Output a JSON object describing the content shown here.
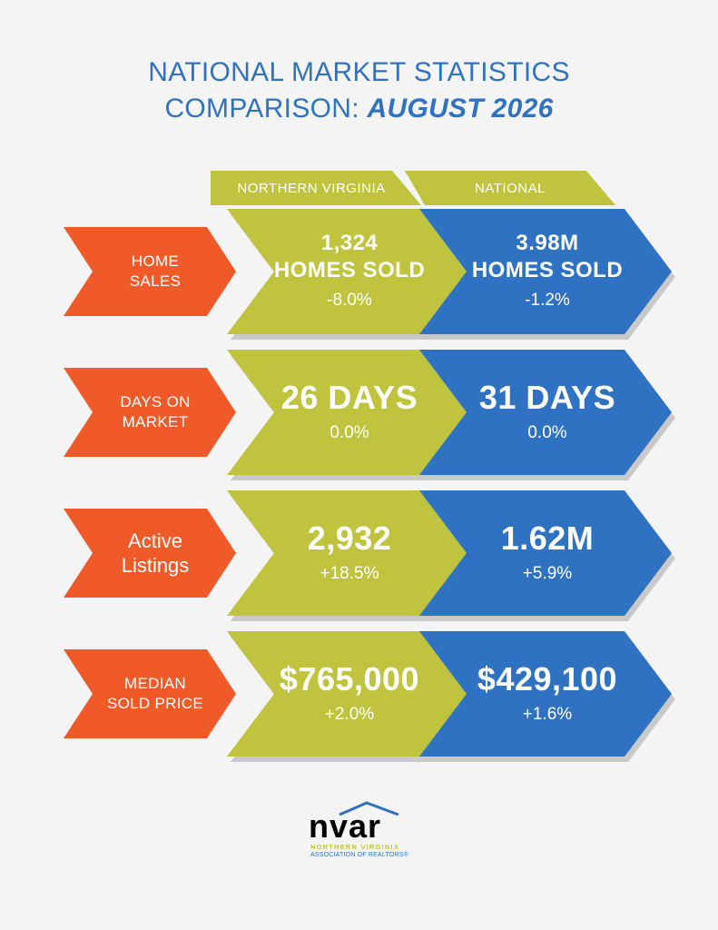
{
  "title": {
    "line1": "NATIONAL MARKET STATISTICS",
    "line2_prefix": "COMPARISON:",
    "line2_bold": "AUGUST 2026"
  },
  "columns": {
    "northern_virginia": "NORTHERN VIRGINIA",
    "national": "NATIONAL"
  },
  "rows": [
    {
      "label_line1": "HOME",
      "label_line2": "SALES",
      "nova_main1": "1,324",
      "nova_main2": "HOMES SOLD",
      "nova_change": "-8.0%",
      "nat_main1": "3.98M",
      "nat_main2": "HOMES SOLD",
      "nat_change": "-1.2%"
    },
    {
      "label_line1": "DAYS ON",
      "label_line2": "MARKET",
      "nova_main": "26 DAYS",
      "nova_change": "0.0%",
      "nat_main": "31 DAYS",
      "nat_change": "0.0%"
    },
    {
      "label_line1": "Active",
      "label_line2": "Listings",
      "nova_main": "2,932",
      "nova_change": "+18.5%",
      "nat_main": "1.62M",
      "nat_change": "+5.9%"
    },
    {
      "label_line1": "MEDIAN",
      "label_line2": "SOLD PRICE",
      "nova_main": "$765,000",
      "nova_change": "+2.0%",
      "nat_main": "$429,100",
      "nat_change": "+1.6%"
    }
  ],
  "logo": {
    "word": "nvar",
    "line1": "NORTHERN VIRGINIA",
    "line2": "ASSOCIATION OF REALTORS®"
  },
  "colors": {
    "blue": "#2f72c1",
    "green": "#bfc33e",
    "orange": "#f05a28",
    "background": "#f4f4f4"
  }
}
